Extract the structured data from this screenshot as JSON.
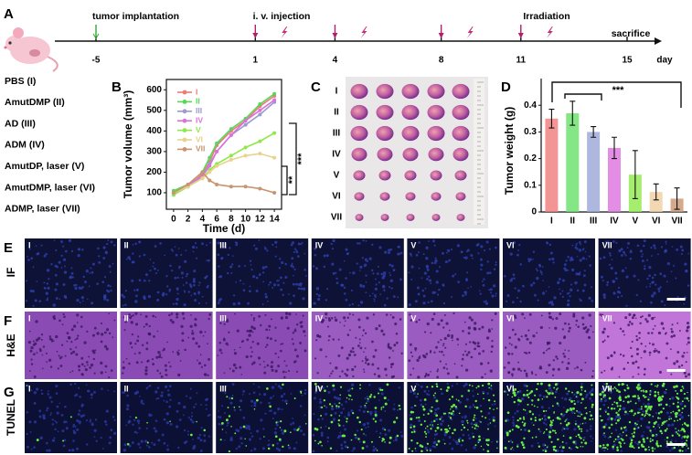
{
  "panel_labels": [
    "A",
    "B",
    "C",
    "D",
    "E",
    "F",
    "G"
  ],
  "timeline": {
    "events": [
      "tumor implantation",
      "i. v. injection",
      "Irradiation",
      "sacrifice"
    ],
    "ticks": [
      -5,
      1,
      4,
      8,
      11,
      15
    ],
    "unit": "day"
  },
  "groups": [
    "PBS (I)",
    "AmutDMP (II)",
    "AD (III)",
    "ADM (IV)",
    "AmutDP, laser (V)",
    "AmutDMP, laser (VI)",
    "ADMP, laser (VII)"
  ],
  "chart_data": [
    {
      "type": "line",
      "xlabel": "Time (d)",
      "ylabel": "Tumor volume (mm³)",
      "x": [
        0,
        2,
        4,
        5,
        6,
        8,
        10,
        12,
        14
      ],
      "xlim": [
        -1,
        15
      ],
      "xticks": [
        0,
        2,
        4,
        6,
        8,
        10,
        12,
        14
      ],
      "ylim": [
        20,
        650
      ],
      "yticks": [
        100,
        200,
        300,
        400,
        500,
        600
      ],
      "series": [
        {
          "name": "I",
          "color": "#f07a7a",
          "values": [
            100,
            130,
            190,
            250,
            330,
            400,
            450,
            520,
            570
          ]
        },
        {
          "name": "II",
          "color": "#55d855",
          "values": [
            110,
            140,
            200,
            270,
            340,
            410,
            460,
            530,
            580
          ]
        },
        {
          "name": "III",
          "color": "#9a9ad0",
          "values": [
            90,
            130,
            180,
            240,
            300,
            380,
            430,
            480,
            540
          ]
        },
        {
          "name": "IV",
          "color": "#dd70dd",
          "values": [
            100,
            140,
            180,
            230,
            300,
            380,
            450,
            500,
            550
          ]
        },
        {
          "name": "V",
          "color": "#8fe84a",
          "values": [
            90,
            130,
            170,
            210,
            240,
            280,
            320,
            350,
            390
          ]
        },
        {
          "name": "VI",
          "color": "#e8d28c",
          "values": [
            100,
            130,
            170,
            200,
            230,
            260,
            280,
            290,
            270
          ]
        },
        {
          "name": "VII",
          "color": "#c99470",
          "values": [
            100,
            140,
            200,
            160,
            140,
            130,
            130,
            120,
            100
          ]
        }
      ],
      "annotations": [
        "**",
        "***"
      ]
    },
    {
      "type": "bar",
      "ylabel": "Tumor weight (g)",
      "categories": [
        "I",
        "II",
        "III",
        "IV",
        "V",
        "VI",
        "VII"
      ],
      "values": [
        0.35,
        0.37,
        0.3,
        0.24,
        0.14,
        0.075,
        0.05
      ],
      "errors": [
        0.035,
        0.045,
        0.02,
        0.04,
        0.09,
        0.03,
        0.04
      ],
      "colors": [
        "#f07a7a",
        "#66e066",
        "#9aa6d6",
        "#dd70dd",
        "#8fe84a",
        "#f0cfa0",
        "#c99470"
      ],
      "ylim": [
        0,
        0.5
      ],
      "yticks": [
        0,
        0.1,
        0.2,
        0.3,
        0.4
      ],
      "annotations": [
        "***"
      ]
    }
  ],
  "photo": {
    "row_labels": [
      "I",
      "II",
      "III",
      "IV",
      "V",
      "VI",
      "VII"
    ]
  },
  "microscopy": {
    "row_labels": [
      "IF",
      "H&E",
      "TUNEL"
    ],
    "column_labels": [
      "I",
      "II",
      "III",
      "IV",
      "V",
      "VI",
      "VII"
    ]
  }
}
